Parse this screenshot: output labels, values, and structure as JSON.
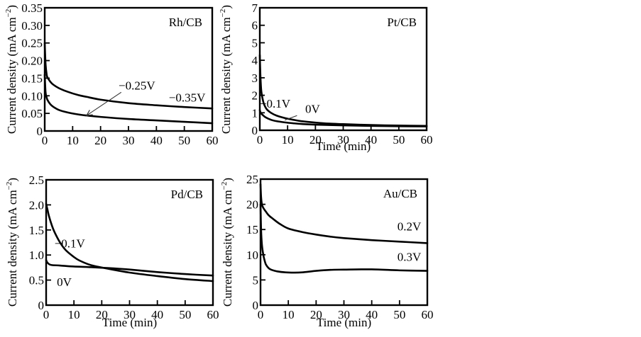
{
  "chart_data": [
    {
      "type": "line",
      "panel_label": "Rh/CB",
      "xlabel": "",
      "ylabel": "Current density (mA cm−2)",
      "xlim": [
        0,
        60
      ],
      "ylim": [
        0,
        0.35
      ],
      "xticks": [
        0,
        10,
        20,
        30,
        40,
        50,
        60
      ],
      "xtick_labels": [
        "0",
        "10",
        "20",
        "30",
        "40",
        "50",
        "60"
      ],
      "yticks": [
        0,
        0.05,
        0.1,
        0.15,
        0.2,
        0.25,
        0.3,
        0.35
      ],
      "ytick_labels": [
        "0",
        "0.05",
        "0.10",
        "0.15",
        "0.20",
        "0.25",
        "0.30",
        "0.35"
      ],
      "grid": false,
      "series": [
        {
          "name": "−0.35V",
          "x": [
            0,
            0.3,
            0.7,
            1,
            2,
            3,
            5,
            8,
            12,
            15,
            20,
            30,
            40,
            50,
            60
          ],
          "y": [
            0.25,
            0.19,
            0.16,
            0.152,
            0.14,
            0.132,
            0.122,
            0.112,
            0.102,
            0.097,
            0.089,
            0.079,
            0.073,
            0.068,
            0.064
          ]
        },
        {
          "name": "−0.25V",
          "x": [
            0,
            0.3,
            0.7,
            1,
            2,
            3,
            5,
            8,
            12,
            15,
            20,
            30,
            40,
            50,
            60
          ],
          "y": [
            0.16,
            0.11,
            0.095,
            0.088,
            0.076,
            0.069,
            0.06,
            0.053,
            0.047,
            0.044,
            0.04,
            0.034,
            0.03,
            0.026,
            0.022
          ]
        }
      ],
      "annotations": [
        {
          "text": "−0.25V",
          "points_to": {
            "x": 15,
            "y": 0.044
          },
          "arrow": true,
          "label_at": {
            "x": 33,
            "y": 0.118
          }
        },
        {
          "text": "−0.35V",
          "label_at": {
            "x": 51,
            "y": 0.083
          }
        }
      ]
    },
    {
      "type": "line",
      "panel_label": "Pt/CB",
      "xlabel": "Time (min)",
      "ylabel": "Current density (mA cm−2)",
      "xlim": [
        0,
        60
      ],
      "ylim": [
        0,
        7
      ],
      "xticks": [
        0,
        10,
        20,
        30,
        40,
        50,
        60
      ],
      "xtick_labels": [
        "0",
        "10",
        "20",
        "30",
        "40",
        "50",
        "60"
      ],
      "yticks": [
        0,
        1,
        2,
        3,
        4,
        5,
        6,
        7
      ],
      "ytick_labels": [
        "0",
        "1",
        "2",
        "3",
        "4",
        "5",
        "6",
        "7"
      ],
      "grid": false,
      "series": [
        {
          "name": "−0.1V",
          "x": [
            0,
            0.2,
            0.5,
            1,
            1.5,
            2.5,
            4,
            6,
            9,
            12,
            15,
            20,
            25,
            30,
            40,
            50,
            60
          ],
          "y": [
            4.3,
            3.2,
            2.3,
            1.8,
            1.5,
            1.2,
            1.0,
            0.84,
            0.7,
            0.6,
            0.52,
            0.44,
            0.38,
            0.35,
            0.3,
            0.27,
            0.25
          ]
        },
        {
          "name": "0V",
          "x": [
            0,
            0.3,
            1,
            2,
            4,
            6,
            9,
            12,
            15,
            20,
            30,
            40,
            50,
            60
          ],
          "y": [
            1.15,
            1.0,
            0.88,
            0.75,
            0.6,
            0.52,
            0.45,
            0.4,
            0.36,
            0.32,
            0.28,
            0.25,
            0.23,
            0.22
          ]
        }
      ],
      "annotations": [
        {
          "text": "−0.1V",
          "label_at": {
            "x": 5.5,
            "y": 1.3
          }
        },
        {
          "text": "0V",
          "points_to": {
            "x": 9,
            "y": 0.58
          },
          "arrow": false,
          "label_at": {
            "x": 19,
            "y": 1.0
          }
        }
      ]
    },
    {
      "type": "line",
      "panel_label": "Pd/CB",
      "xlabel": "Time (min)",
      "ylabel": "Current density (mA cm−2)",
      "xlim": [
        0,
        60
      ],
      "ylim": [
        0,
        2.5
      ],
      "xticks": [
        0,
        10,
        20,
        30,
        40,
        50,
        60
      ],
      "xtick_labels": [
        "0",
        "10",
        "20",
        "30",
        "40",
        "50",
        "60"
      ],
      "yticks": [
        0,
        0.5,
        1.0,
        1.5,
        2.0,
        2.5
      ],
      "ytick_labels": [
        "0",
        "0.5",
        "1.0",
        "1.5",
        "2.0",
        "2.5"
      ],
      "grid": false,
      "series": [
        {
          "name": "−0.1V",
          "x": [
            0,
            0.5,
            1,
            2,
            3,
            5,
            7,
            10,
            12,
            16,
            22,
            30,
            40,
            50,
            60
          ],
          "y": [
            2.02,
            1.9,
            1.78,
            1.6,
            1.46,
            1.25,
            1.1,
            0.96,
            0.89,
            0.8,
            0.73,
            0.65,
            0.58,
            0.52,
            0.48
          ]
        },
        {
          "name": "0V",
          "x": [
            0,
            0.3,
            1,
            2,
            5,
            10,
            15,
            22,
            30,
            40,
            50,
            60
          ],
          "y": [
            0.9,
            0.86,
            0.82,
            0.8,
            0.79,
            0.77,
            0.76,
            0.74,
            0.71,
            0.66,
            0.62,
            0.59
          ]
        }
      ],
      "annotations": [
        {
          "text": "−0.1V",
          "label_at": {
            "x": 8.5,
            "y": 1.15
          }
        },
        {
          "text": "0V",
          "label_at": {
            "x": 6.5,
            "y": 0.38
          }
        }
      ]
    },
    {
      "type": "line",
      "panel_label": "Au/CB",
      "xlabel": "Time (min)",
      "ylabel": "Current density (mA cm−2)",
      "xlim": [
        0,
        60
      ],
      "ylim": [
        0,
        25
      ],
      "xticks": [
        0,
        10,
        20,
        30,
        40,
        50,
        60
      ],
      "xtick_labels": [
        "0",
        "10",
        "20",
        "30",
        "40",
        "50",
        "60"
      ],
      "yticks": [
        0,
        5,
        10,
        15,
        20,
        25
      ],
      "ytick_labels": [
        "0",
        "5",
        "10",
        "15",
        "20",
        "25"
      ],
      "grid": false,
      "series": [
        {
          "name": "0.2V",
          "x": [
            0,
            0.2,
            0.5,
            1,
            2,
            3,
            5,
            7,
            10,
            15,
            20,
            25,
            30,
            40,
            50,
            60
          ],
          "y": [
            24,
            21.5,
            20,
            19.3,
            18.5,
            17.8,
            16.9,
            16.1,
            15.2,
            14.5,
            14.0,
            13.6,
            13.3,
            12.9,
            12.6,
            12.3
          ]
        },
        {
          "name": "0.3V",
          "x": [
            0,
            0.2,
            0.5,
            1,
            1.5,
            2,
            3,
            4,
            6,
            9,
            12,
            15,
            20,
            25,
            30,
            40,
            50,
            60
          ],
          "y": [
            20,
            15,
            12,
            10,
            8.8,
            8.0,
            7.3,
            7.0,
            6.7,
            6.5,
            6.45,
            6.5,
            6.8,
            7.0,
            7.05,
            7.1,
            6.9,
            6.8
          ]
        }
      ],
      "annotations": [
        {
          "text": "0.2V",
          "label_at": {
            "x": 53.5,
            "y": 14.8
          }
        },
        {
          "text": "0.3V",
          "label_at": {
            "x": 53.5,
            "y": 8.8
          }
        }
      ]
    }
  ]
}
